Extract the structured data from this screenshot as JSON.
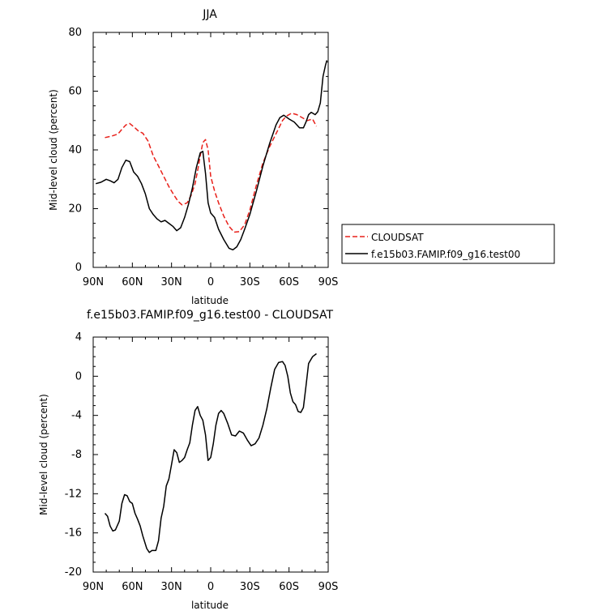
{
  "chart_data": [
    {
      "type": "line",
      "title": "JJA",
      "xlabel": "latitude",
      "ylabel": "Mid-level cloud (percent)",
      "xlim": [
        -90,
        90
      ],
      "ylim": [
        0,
        80
      ],
      "x_ticks": [
        -90,
        -60,
        -30,
        0,
        30,
        60,
        90
      ],
      "x_tick_labels": [
        "90N",
        "60N",
        "30N",
        "0",
        "30S",
        "60S",
        "90S"
      ],
      "y_ticks": [
        0,
        20,
        40,
        60,
        80
      ],
      "y_tick_labels": [
        "0",
        "20",
        "40",
        "60",
        "80"
      ],
      "grid": false,
      "legend_position": "right",
      "series": [
        {
          "name": "CLOUDSAT",
          "color": "#e8201a",
          "dash": "dashed",
          "x": [
            -81,
            -76,
            -71,
            -68,
            -65,
            -62,
            -58,
            -55,
            -52,
            -48,
            -44,
            -40,
            -36,
            -32,
            -28,
            -25,
            -22,
            -18,
            -15,
            -12,
            -10,
            -8,
            -6,
            -4,
            -2,
            0,
            3,
            6,
            10,
            14,
            18,
            22,
            26,
            30,
            35,
            40,
            45,
            50,
            55,
            58,
            62,
            66,
            70,
            74,
            78,
            81
          ],
          "values": [
            44.2,
            44.7,
            45.4,
            47.0,
            48.5,
            49.0,
            47.5,
            46.3,
            45.7,
            43.0,
            38.0,
            34.5,
            31.0,
            27.5,
            24.5,
            22.5,
            21.3,
            22.0,
            24.5,
            28.5,
            33.0,
            38.0,
            42.5,
            43.5,
            40.0,
            31.0,
            26.0,
            22.0,
            17.5,
            14.0,
            12.0,
            12.2,
            14.5,
            19.5,
            28.0,
            35.5,
            41.0,
            45.5,
            50.0,
            51.5,
            52.5,
            52.0,
            51.0,
            50.0,
            50.5,
            48.0
          ]
        },
        {
          "name": "f.e15b03.FAMIP.f09_g16.test00",
          "color": "#000000",
          "dash": "solid",
          "x": [
            -88,
            -84,
            -80,
            -77,
            -74,
            -71,
            -68,
            -65,
            -62,
            -59,
            -56,
            -53,
            -50,
            -47,
            -44,
            -41,
            -38,
            -35,
            -32,
            -29,
            -26,
            -23,
            -20,
            -17,
            -14,
            -11,
            -8,
            -6,
            -4,
            -2,
            0,
            3,
            6,
            10,
            14,
            17,
            20,
            23,
            26,
            30,
            35,
            40,
            45,
            50,
            53,
            56,
            60,
            64,
            68,
            71,
            73,
            75,
            77,
            80,
            82,
            84,
            86,
            88,
            89
          ],
          "values": [
            28.5,
            29.0,
            30.0,
            29.5,
            28.8,
            30.0,
            34.0,
            36.5,
            36.0,
            32.5,
            31.0,
            28.5,
            25.0,
            20.0,
            18.0,
            16.5,
            15.5,
            16.0,
            15.0,
            14.0,
            12.5,
            13.5,
            17.0,
            21.5,
            27.0,
            34.0,
            39.0,
            39.5,
            32.0,
            22.0,
            18.5,
            17.0,
            13.0,
            9.5,
            6.5,
            6.0,
            7.0,
            9.5,
            13.0,
            18.0,
            26.0,
            34.5,
            42.0,
            48.5,
            51.0,
            51.8,
            50.5,
            49.5,
            47.5,
            47.5,
            49.5,
            52.0,
            52.8,
            52.0,
            53.0,
            56.0,
            65.0,
            69.0,
            70.5
          ]
        }
      ]
    },
    {
      "type": "line",
      "title": "f.e15b03.FAMIP.f09_g16.test00 - CLOUDSAT",
      "xlabel": "latitude",
      "ylabel": "Mid-level cloud (percent)",
      "xlim": [
        -90,
        90
      ],
      "ylim": [
        -20,
        4
      ],
      "x_ticks": [
        -90,
        -60,
        -30,
        0,
        30,
        60,
        90
      ],
      "x_tick_labels": [
        "90N",
        "60N",
        "30N",
        "0",
        "30S",
        "60S",
        "90S"
      ],
      "y_ticks": [
        -20,
        -16,
        -12,
        -8,
        -4,
        0,
        4
      ],
      "y_tick_labels": [
        "-20",
        "-16",
        "-12",
        "-8",
        "-4",
        "0",
        "4"
      ],
      "grid": false,
      "series": [
        {
          "color": "#000000",
          "dash": "solid",
          "x": [
            -81,
            -79,
            -77,
            -75,
            -73,
            -70,
            -68,
            -66,
            -64,
            -62,
            -60,
            -58,
            -56,
            -54,
            -52,
            -49,
            -47,
            -45,
            -42,
            -40,
            -38,
            -36,
            -34,
            -32,
            -30,
            -28,
            -26,
            -24,
            -22,
            -20,
            -18,
            -16,
            -14,
            -12,
            -10,
            -8,
            -6,
            -4,
            -2,
            0,
            2,
            4,
            6,
            8,
            10,
            13,
            16,
            19,
            22,
            25,
            28,
            31,
            34,
            37,
            40,
            43,
            46,
            49,
            52,
            55,
            57,
            59,
            61,
            63,
            65,
            67,
            69,
            71,
            73,
            75,
            78,
            81
          ],
          "values": [
            -14.0,
            -14.3,
            -15.3,
            -15.8,
            -15.7,
            -14.8,
            -13.0,
            -12.1,
            -12.2,
            -12.8,
            -13.0,
            -14.0,
            -14.6,
            -15.3,
            -16.3,
            -17.6,
            -18.0,
            -17.8,
            -17.8,
            -16.8,
            -14.5,
            -13.3,
            -11.2,
            -10.5,
            -9.0,
            -7.5,
            -7.8,
            -8.8,
            -8.6,
            -8.3,
            -7.5,
            -6.8,
            -5.0,
            -3.5,
            -3.1,
            -4.0,
            -4.5,
            -6.0,
            -8.6,
            -8.3,
            -6.9,
            -5.0,
            -3.8,
            -3.5,
            -3.8,
            -4.8,
            -6.0,
            -6.1,
            -5.6,
            -5.8,
            -6.5,
            -7.1,
            -6.9,
            -6.3,
            -5.0,
            -3.3,
            -1.2,
            0.7,
            1.4,
            1.5,
            1.1,
            0.0,
            -1.7,
            -2.6,
            -2.9,
            -3.6,
            -3.7,
            -3.2,
            -1.0,
            1.3,
            2.0,
            2.3
          ]
        }
      ]
    }
  ]
}
